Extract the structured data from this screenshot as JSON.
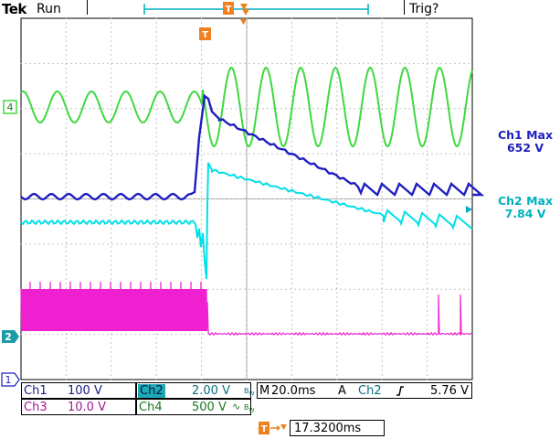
{
  "header": {
    "brand": "Tek",
    "run_state": "Run",
    "trigger_state": "Trig?"
  },
  "markers": {
    "ch4": "4",
    "ch2": "2",
    "ch1": "1",
    "trigger_pos": "T"
  },
  "readouts": [
    {
      "label": "Ch1 Max",
      "value": "652 V",
      "color": "#1f1fc0"
    },
    {
      "label": "Ch2 Max",
      "value": "7.84 V",
      "color": "#00b0c0"
    }
  ],
  "channels": {
    "ch1": {
      "label": "Ch1",
      "scale": "100 V",
      "color": "#1f1fc0"
    },
    "ch2": {
      "label": "Ch2",
      "scale": "2.00 V",
      "color": "#00e0e8"
    },
    "ch3": {
      "label": "Ch3",
      "scale": "10.0 V",
      "color": "#ee20d0"
    },
    "ch4": {
      "label": "Ch4",
      "scale": "500 V",
      "color": "#40d840"
    }
  },
  "timebase": {
    "label": "M",
    "value": "20.0ms"
  },
  "trigger": {
    "mode": "A",
    "source": "Ch2",
    "slope_icon": "rising-edge-icon",
    "level": "5.76 V",
    "delay": "17.3200ms"
  },
  "chart_data": {
    "type": "line",
    "title": "",
    "xlabel": "",
    "ylabel": "",
    "grid": true,
    "x_divisions": 10,
    "y_divisions": 8,
    "series": [
      {
        "name": "Ch4",
        "color": "#40d840"
      },
      {
        "name": "Ch1",
        "color": "#1f1fc0"
      },
      {
        "name": "Ch2",
        "color": "#00e0e8"
      },
      {
        "name": "Ch3",
        "color": "#ee20d0"
      }
    ]
  }
}
